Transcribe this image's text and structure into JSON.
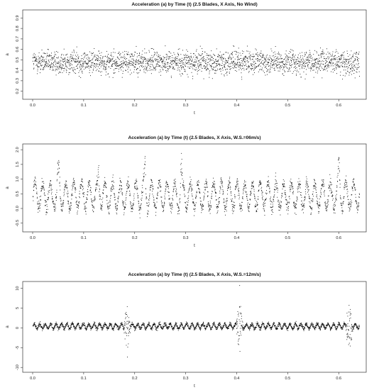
{
  "chart_data": [
    {
      "type": "scatter",
      "title": "Acceleration (a) by Time (t) (2.5 Blades, X Axis, No Wind)",
      "xlabel": "t",
      "ylabel": "a",
      "xlim": [
        0.0,
        0.64
      ],
      "ylim": [
        0.15,
        0.95
      ],
      "x_ticks": [
        "0.0",
        "0.1",
        "0.2",
        "0.3",
        "0.4",
        "0.5",
        "0.6"
      ],
      "y_ticks": [
        "0.2",
        "0.3",
        "0.4",
        "0.5",
        "0.6",
        "0.7",
        "0.8",
        "0.9"
      ],
      "series": [
        {
          "points": 2400,
          "pattern": "dense uniform noise",
          "mean": 0.48,
          "spread": 0.1,
          "x_range": [
            0.0,
            0.64
          ],
          "y_range": [
            0.15,
            0.94
          ]
        }
      ]
    },
    {
      "type": "scatter",
      "title": "Acceleration (a) by Time (t) (2.5 Blades, X Axis, W.S.=06m/s)",
      "xlabel": "t",
      "ylabel": "a",
      "xlim": [
        0.0,
        0.64
      ],
      "ylim": [
        -0.7,
        2.1
      ],
      "x_ticks": [
        "0.0",
        "0.1",
        "0.2",
        "0.3",
        "0.4",
        "0.5",
        "0.6"
      ],
      "y_ticks": [
        "-0.5",
        "0.0",
        "0.5",
        "1.0",
        "1.5",
        "2.0"
      ],
      "series": [
        {
          "points": 2200,
          "pattern": "oscillation with periodic spikes",
          "mean": 0.45,
          "amplitude": 0.45,
          "cycles": 42,
          "spike_t": [
            0.05,
            0.13,
            0.22,
            0.29,
            0.6
          ],
          "peak_max": 2.05,
          "x_range": [
            0.0,
            0.64
          ],
          "y_range": [
            -0.6,
            2.05
          ]
        }
      ]
    },
    {
      "type": "scatter",
      "title": "Acceleration (a) by Time (t) (2.5 Blades, X Axis, W.S.=12m/s)",
      "xlabel": "t",
      "ylabel": "a",
      "xlim": [
        0.0,
        0.64
      ],
      "ylim": [
        -10.5,
        11
      ],
      "x_ticks": [
        "0.0",
        "0.1",
        "0.2",
        "0.3",
        "0.4",
        "0.5",
        "0.6"
      ],
      "y_ticks": [
        "-10",
        "-5",
        "0",
        "5",
        "10"
      ],
      "series": [
        {
          "points": 2600,
          "pattern": "low-amplitude band with large bursts",
          "mean": 0.5,
          "amplitude": 0.6,
          "cycles": 60,
          "burst_t": [
            0.185,
            0.405,
            0.62
          ],
          "burst_peak": 10.5,
          "x_range": [
            0.0,
            0.64
          ],
          "y_range": [
            -10.2,
            10.8
          ]
        }
      ]
    }
  ]
}
